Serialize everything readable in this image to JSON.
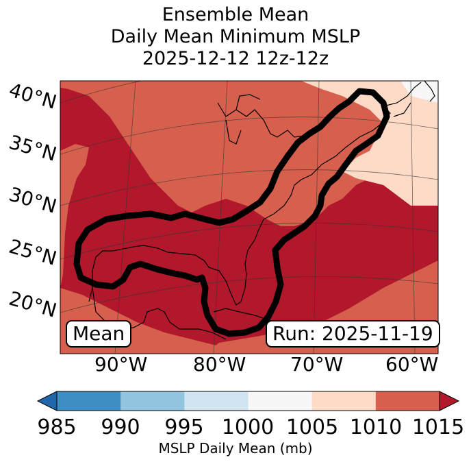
{
  "title": {
    "line1": "Ensemble Mean",
    "line2": "Daily Mean Minimum MSLP",
    "line3": "2025-12-12 12z-12z"
  },
  "map": {
    "lat_labels": [
      "40°N",
      "35°N",
      "30°N",
      "25°N",
      "20°N"
    ],
    "lon_labels": [
      "90°W",
      "80°W",
      "70°W",
      "60°W"
    ],
    "mean_label": "Mean",
    "run_label": "Run: 2025-11-19"
  },
  "colorbar": {
    "label": "MSLP Daily Mean (mb)",
    "ticks": [
      "985",
      "990",
      "995",
      "1000",
      "1005",
      "1010",
      "1015"
    ],
    "colors": [
      "#3f8ec3",
      "#92c4df",
      "#d1e5f0",
      "#f7f7f7",
      "#fddbc7",
      "#d6604d",
      "#b2182b"
    ],
    "under_color": "#2166ac",
    "over_color": "#b2182b"
  },
  "fill_colors": {
    "c1005": "#fddbc7",
    "c1010": "#d6604d",
    "c1015": "#b2182b",
    "land_top": "#f7f7f7"
  }
}
